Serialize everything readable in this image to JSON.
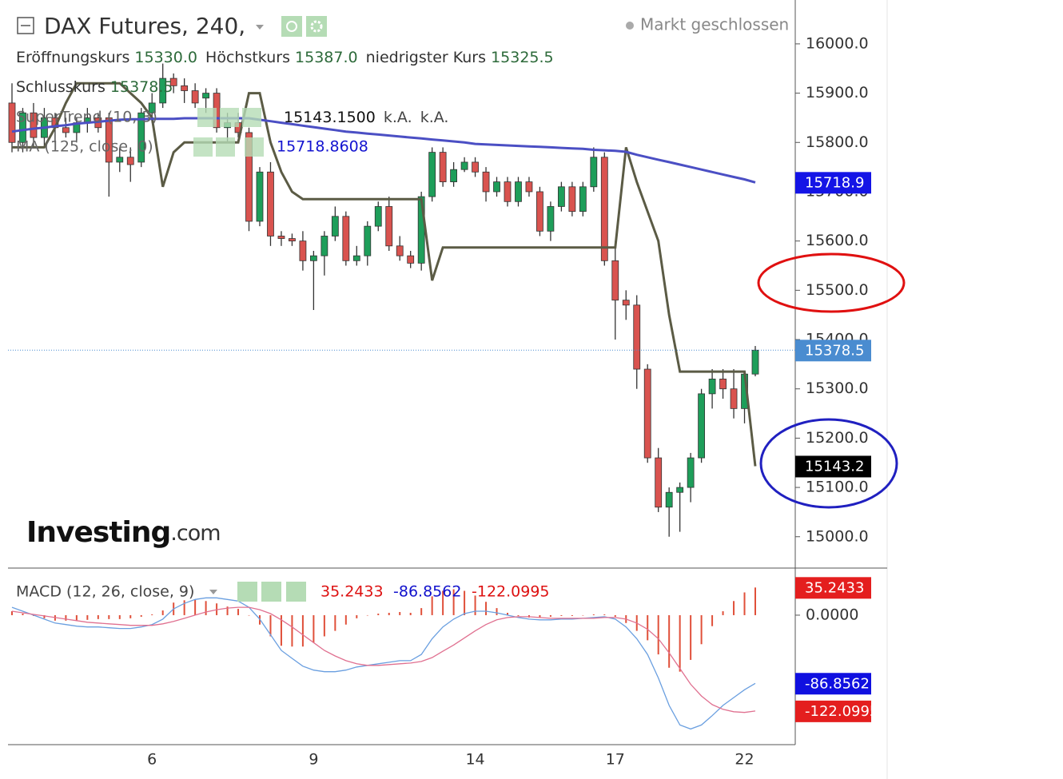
{
  "chart_data": [
    {
      "type": "candlestick",
      "title": "DAX Futures, 240,",
      "status": "Markt geschlossen",
      "ohlc_legend": [
        {
          "name": "Eröffnungskurs",
          "value": "15330.0"
        },
        {
          "name": "Höchstkurs",
          "value": "15387.0"
        },
        {
          "name": "niedrigster Kurs",
          "value": "15325.5"
        },
        {
          "name": "Schlusskurs",
          "value": "15378.5"
        }
      ],
      "watermark": "Investing",
      "watermark_suffix": ".com",
      "categories": [
        null,
        null,
        null,
        null,
        null,
        null,
        null,
        null,
        null,
        null,
        null,
        null,
        null,
        "6",
        null,
        null,
        null,
        null,
        null,
        null,
        null,
        null,
        null,
        null,
        null,
        null,
        null,
        null,
        "9",
        null,
        null,
        null,
        null,
        null,
        null,
        null,
        null,
        null,
        null,
        null,
        null,
        null,
        null,
        "14",
        null,
        null,
        null,
        null,
        null,
        null,
        null,
        null,
        null,
        null,
        null,
        null,
        "17",
        null,
        null,
        null,
        null,
        null,
        null,
        null,
        null,
        null,
        null,
        null,
        "22",
        null
      ],
      "open": [
        15880,
        15800,
        15860,
        15810,
        15850,
        15830,
        15820,
        15840,
        15850,
        15850,
        15760,
        15770,
        15760,
        15860,
        15880,
        15930,
        15915,
        15905,
        15890,
        15900,
        15830,
        15840,
        15820,
        15640,
        15740,
        15610,
        15605,
        15600,
        15560,
        15570,
        15610,
        15650,
        15560,
        15570,
        15630,
        15670,
        15590,
        15570,
        15555,
        15690,
        15780,
        15720,
        15745,
        15760,
        15740,
        15700,
        15720,
        15680,
        15720,
        15700,
        15620,
        15670,
        15710,
        15660,
        15710,
        15770,
        15560,
        15480,
        15470,
        15340,
        15160,
        15060,
        15090,
        15100,
        15160,
        15290,
        15320,
        15300,
        15260,
        15330
      ],
      "high": [
        15920,
        15870,
        15880,
        15870,
        15860,
        15850,
        15850,
        15870,
        15860,
        15860,
        15790,
        15790,
        15870,
        15900,
        15960,
        15940,
        15930,
        15920,
        15910,
        15910,
        15860,
        15860,
        15830,
        15750,
        15760,
        15620,
        15615,
        15620,
        15580,
        15620,
        15670,
        15660,
        15590,
        15640,
        15680,
        15690,
        15610,
        15580,
        15700,
        15790,
        15790,
        15760,
        15770,
        15770,
        15750,
        15730,
        15730,
        15730,
        15730,
        15710,
        15680,
        15720,
        15720,
        15720,
        15790,
        15780,
        15600,
        15500,
        15490,
        15350,
        15180,
        15100,
        15110,
        15170,
        15300,
        15340,
        15340,
        15340,
        15330,
        15387
      ],
      "low": [
        15780,
        15780,
        15790,
        15790,
        15800,
        15810,
        15800,
        15820,
        15820,
        15690,
        15740,
        15720,
        15750,
        15840,
        15870,
        15900,
        15880,
        15870,
        15860,
        15820,
        15800,
        15810,
        15620,
        15630,
        15590,
        15590,
        15590,
        15540,
        15460,
        15530,
        15600,
        15550,
        15550,
        15550,
        15620,
        15580,
        15560,
        15545,
        15540,
        15680,
        15710,
        15710,
        15740,
        15730,
        15680,
        15690,
        15670,
        15670,
        15690,
        15610,
        15600,
        15660,
        15650,
        15650,
        15700,
        15550,
        15400,
        15440,
        15300,
        15150,
        15050,
        15000,
        15010,
        15070,
        15150,
        15260,
        15280,
        15240,
        15230,
        15325.5
      ],
      "close": [
        15800,
        15860,
        15810,
        15850,
        15830,
        15820,
        15840,
        15850,
        15830,
        15760,
        15770,
        15755,
        15860,
        15880,
        15930,
        15915,
        15905,
        15880,
        15900,
        15830,
        15840,
        15820,
        15640,
        15740,
        15610,
        15605,
        15600,
        15560,
        15570,
        15610,
        15650,
        15560,
        15570,
        15630,
        15670,
        15590,
        15570,
        15555,
        15690,
        15780,
        15720,
        15745,
        15760,
        15740,
        15700,
        15720,
        15680,
        15720,
        15700,
        15620,
        15670,
        15710,
        15660,
        15710,
        15770,
        15560,
        15480,
        15470,
        15340,
        15160,
        15060,
        15090,
        15100,
        15160,
        15290,
        15320,
        15300,
        15260,
        15330,
        15378.5
      ],
      "up_color": "#1e9e5a",
      "down_color": "#d9534f",
      "close_label_color": "#4a8cd0",
      "overlays": [
        {
          "name": "SuperTrend (10, 3)",
          "color": "#5b5b45",
          "label_color": "#000000",
          "legend_values": [
            "15143.1500",
            "k.A.",
            "k.A."
          ],
          "last_value_label": "15143.2",
          "values": [
            15790,
            15790,
            15790,
            15790,
            15830,
            15880,
            15920,
            15920,
            15920,
            15920,
            15920,
            15900,
            15880,
            15850,
            15710,
            15780,
            15800,
            15800,
            15800,
            15800,
            15800,
            15800,
            15900,
            15900,
            15800,
            15740,
            15700,
            15685,
            15685,
            15685,
            15685,
            15685,
            15685,
            15685,
            15685,
            15685,
            15685,
            15685,
            15685,
            15520,
            15587,
            15587,
            15587,
            15587,
            15587,
            15587,
            15587,
            15587,
            15587,
            15587,
            15587,
            15587,
            15587,
            15587,
            15587,
            15587,
            15587,
            15790,
            15720,
            15660,
            15600,
            15450,
            15335,
            15335,
            15335,
            15335,
            15335,
            15335,
            15335,
            15143.15
          ]
        },
        {
          "name": "MA (125, close, 0)",
          "color": "#4b4fc4",
          "label_color": "#1414e6",
          "last_value_label": "15718.9",
          "values": [
            15822,
            15825,
            15828,
            15830,
            15833,
            15835,
            15838,
            15840,
            15842,
            15844,
            15846,
            15847,
            15847,
            15848,
            15848,
            15848,
            15849,
            15849,
            15849,
            15849,
            15849,
            15849,
            15849,
            15846,
            15843,
            15840,
            15837,
            15834,
            15831,
            15828,
            15825,
            15822,
            15820,
            15818,
            15816,
            15814,
            15812,
            15810,
            15808,
            15806,
            15804,
            15802,
            15800,
            15797,
            15796,
            15795,
            15794,
            15793,
            15792,
            15791,
            15790,
            15789,
            15788,
            15787,
            15785,
            15784,
            15783,
            15781,
            15775,
            15770,
            15765,
            15760,
            15755,
            15750,
            15745,
            15740,
            15735,
            15730,
            15725,
            15718.8608
          ]
        }
      ],
      "ylim": [
        14938,
        16089
      ],
      "yticks": [
        {
          "value": 15000,
          "label": "15000.0"
        },
        {
          "value": 15100,
          "label": "15100.0"
        },
        {
          "value": 15200,
          "label": "15200.0"
        },
        {
          "value": 15300,
          "label": "15300.0"
        },
        {
          "value": 15400,
          "label": "15400.0"
        },
        {
          "value": 15500,
          "label": "15500.0"
        },
        {
          "value": 15600,
          "label": "15600.0"
        },
        {
          "value": 15700,
          "label": "15700.0"
        },
        {
          "value": 15800,
          "label": "15800.0"
        },
        {
          "value": 15900,
          "label": "15900.0"
        },
        {
          "value": 16000,
          "label": "16000.0"
        }
      ]
    },
    {
      "type": "macd",
      "title": "MACD (12, 26, close, 9)",
      "series": [
        {
          "kind": "histogram",
          "color": "#e0503a",
          "label_color": "#e41e1e",
          "values": [
            5,
            2,
            -1,
            -4,
            -7,
            -7,
            -7,
            -6,
            -5,
            -5,
            -5,
            -4,
            -2,
            1,
            6,
            16,
            19,
            20,
            18,
            15,
            11,
            8,
            0,
            -12,
            -27,
            -39,
            -40,
            -40,
            -35,
            -27,
            -20,
            -12,
            -4,
            0,
            2,
            3,
            4,
            3,
            9,
            24,
            31,
            33,
            31,
            25,
            17,
            9,
            3,
            -1,
            -3,
            -3,
            -2,
            -1,
            -1,
            0,
            1,
            1,
            -2,
            -10,
            -20,
            -32,
            -50,
            -67,
            -72,
            -57,
            -37,
            -14,
            5,
            18,
            29,
            35.2433
          ]
        },
        {
          "kind": "line",
          "color": "#6a9fe0",
          "label_color": "#1010e0",
          "values": [
            10,
            5,
            0,
            -5,
            -10,
            -12,
            -14,
            -15,
            -15,
            -16,
            -17,
            -17,
            -15,
            -12,
            -5,
            8,
            15,
            20,
            22,
            22,
            20,
            18,
            10,
            -5,
            -25,
            -45,
            -55,
            -65,
            -70,
            -72,
            -72,
            -70,
            -66,
            -64,
            -62,
            -60,
            -58,
            -58,
            -50,
            -30,
            -15,
            -5,
            2,
            5,
            5,
            3,
            0,
            -3,
            -5,
            -6,
            -6,
            -5,
            -5,
            -4,
            -3,
            -2,
            -5,
            -15,
            -30,
            -50,
            -80,
            -115,
            -140,
            -145,
            -140,
            -128,
            -115,
            -105,
            -95,
            -86.8562
          ]
        },
        {
          "kind": "line",
          "color": "#e07090",
          "label_color": "#e41e1e",
          "values": [
            5,
            3,
            1,
            -1,
            -3,
            -5,
            -7,
            -9,
            -10,
            -11,
            -12,
            -13,
            -13,
            -13,
            -11,
            -8,
            -4,
            0,
            4,
            7,
            9,
            10,
            10,
            7,
            2,
            -6,
            -15,
            -25,
            -35,
            -45,
            -52,
            -58,
            -62,
            -64,
            -64,
            -63,
            -62,
            -61,
            -59,
            -54,
            -46,
            -38,
            -29,
            -20,
            -12,
            -6,
            -3,
            -2,
            -2,
            -3,
            -4,
            -4,
            -4,
            -4,
            -4,
            -3,
            -3,
            -5,
            -10,
            -18,
            -30,
            -48,
            -68,
            -88,
            -103,
            -114,
            -120,
            -123,
            -124,
            -122.0995
          ]
        }
      ],
      "ylim": [
        -165,
        59
      ],
      "yticks": [
        {
          "value": 0,
          "label": "0.0000"
        }
      ]
    }
  ]
}
